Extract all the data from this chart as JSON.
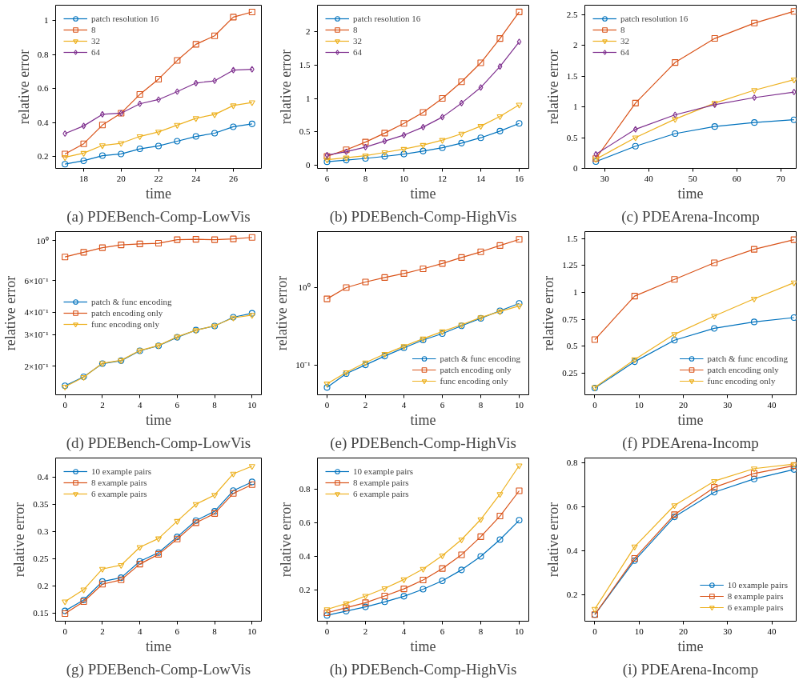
{
  "chart_data": [
    {
      "type": "line",
      "title": "(a) PDEBench-Comp-LowVis",
      "xlabel": "time",
      "ylabel": "relative error",
      "legend": "top left",
      "x": [
        17,
        18,
        19,
        20,
        21,
        22,
        23,
        24,
        25,
        26,
        27
      ],
      "xlim": [
        16.5,
        27.5
      ],
      "xticks": [
        18,
        20,
        22,
        24,
        26
      ],
      "ylim": [
        0.13,
        1.09
      ],
      "yticks": [
        0.2,
        0.4,
        0.6,
        0.8,
        1.0
      ],
      "series": [
        {
          "name": "patch resolution 16",
          "color": "#0072bd",
          "marker": "circle",
          "values": [
            0.155,
            0.175,
            0.205,
            0.215,
            0.245,
            0.262,
            0.29,
            0.318,
            0.337,
            0.375,
            0.392
          ]
        },
        {
          "name": "8",
          "color": "#d95319",
          "marker": "square",
          "values": [
            0.215,
            0.275,
            0.385,
            0.455,
            0.565,
            0.655,
            0.765,
            0.86,
            0.91,
            1.02,
            1.05
          ]
        },
        {
          "name": "32",
          "color": "#edb120",
          "marker": "triangle",
          "values": [
            0.195,
            0.22,
            0.265,
            0.278,
            0.318,
            0.345,
            0.385,
            0.425,
            0.447,
            0.5,
            0.518
          ]
        },
        {
          "name": "64",
          "color": "#7e2f8e",
          "marker": "diamond",
          "values": [
            0.335,
            0.38,
            0.448,
            0.455,
            0.51,
            0.535,
            0.582,
            0.632,
            0.645,
            0.708,
            0.713
          ]
        }
      ]
    },
    {
      "type": "line",
      "title": "(b) PDEBench-Comp-HighVis",
      "xlabel": "time",
      "ylabel": "relative error",
      "legend": "top left",
      "x": [
        6,
        7,
        8,
        9,
        10,
        11,
        12,
        13,
        14,
        15,
        16
      ],
      "xlim": [
        5.5,
        16.5
      ],
      "xticks": [
        6,
        8,
        10,
        12,
        14,
        16
      ],
      "ylim": [
        -0.05,
        2.4
      ],
      "yticks": [
        0.0,
        0.5,
        1.0,
        1.5,
        2.0
      ],
      "series": [
        {
          "name": "patch resolution 16",
          "color": "#0072bd",
          "marker": "circle",
          "values": [
            0.05,
            0.075,
            0.1,
            0.13,
            0.165,
            0.21,
            0.26,
            0.33,
            0.41,
            0.51,
            0.625
          ]
        },
        {
          "name": "8",
          "color": "#d95319",
          "marker": "square",
          "values": [
            0.13,
            0.23,
            0.345,
            0.48,
            0.625,
            0.79,
            1.0,
            1.25,
            1.535,
            1.9,
            2.3
          ]
        },
        {
          "name": "32",
          "color": "#edb120",
          "marker": "triangle",
          "values": [
            0.08,
            0.11,
            0.14,
            0.19,
            0.24,
            0.3,
            0.375,
            0.47,
            0.585,
            0.73,
            0.905
          ]
        },
        {
          "name": "64",
          "color": "#7e2f8e",
          "marker": "diamond",
          "values": [
            0.15,
            0.2,
            0.27,
            0.36,
            0.45,
            0.57,
            0.72,
            0.93,
            1.165,
            1.48,
            1.85
          ]
        }
      ]
    },
    {
      "type": "line",
      "title": "(c) PDEArena-Incomp",
      "xlabel": "time",
      "ylabel": "relative error",
      "legend": "top left",
      "x": [
        28,
        37,
        46,
        55,
        64,
        73
      ],
      "xlim": [
        25.5,
        73.5
      ],
      "xticks": [
        30,
        40,
        50,
        60,
        70
      ],
      "ylim": [
        0,
        2.65
      ],
      "yticks": [
        0.0,
        0.5,
        1.0,
        1.5,
        2.0,
        2.5
      ],
      "series": [
        {
          "name": "patch resolution 16",
          "color": "#0072bd",
          "marker": "circle",
          "values": [
            0.11,
            0.36,
            0.565,
            0.68,
            0.745,
            0.79
          ]
        },
        {
          "name": "8",
          "color": "#d95319",
          "marker": "square",
          "values": [
            0.16,
            1.06,
            1.72,
            2.11,
            2.36,
            2.55
          ]
        },
        {
          "name": "32",
          "color": "#edb120",
          "marker": "triangle",
          "values": [
            0.15,
            0.5,
            0.8,
            1.06,
            1.27,
            1.44
          ]
        },
        {
          "name": "64",
          "color": "#7e2f8e",
          "marker": "diamond",
          "values": [
            0.23,
            0.635,
            0.87,
            1.035,
            1.15,
            1.24
          ]
        }
      ]
    },
    {
      "type": "line",
      "title": "(d) PDEBench-Comp-LowVis",
      "xlabel": "time",
      "ylabel": "relative error",
      "legend": "left",
      "log": "y",
      "x": [
        0,
        1,
        2,
        3,
        4,
        5,
        6,
        7,
        8,
        9,
        10
      ],
      "xlim": [
        -0.5,
        10.5
      ],
      "xticks": [
        0,
        2,
        4,
        6,
        8,
        10
      ],
      "ylim": [
        0.139,
        1.12
      ],
      "yticks": [
        {
          "value": 0.2,
          "label": "2×10⁻¹"
        },
        {
          "value": 0.3,
          "label": "3×10⁻¹"
        },
        {
          "value": 0.4,
          "label": "4×10⁻¹"
        },
        {
          "value": 0.6,
          "label": "6×10⁻¹"
        },
        {
          "value": 1,
          "label": "10⁰"
        }
      ],
      "series": [
        {
          "name": "patch & func encoding",
          "color": "#0072bd",
          "marker": "circle",
          "values": [
            0.156,
            0.175,
            0.207,
            0.215,
            0.244,
            0.26,
            0.29,
            0.318,
            0.335,
            0.375,
            0.394
          ]
        },
        {
          "name": "patch encoding only",
          "color": "#d95319",
          "marker": "square",
          "values": [
            0.81,
            0.86,
            0.912,
            0.945,
            0.957,
            0.965,
            1.01,
            1.015,
            1.01,
            1.02,
            1.04
          ]
        },
        {
          "name": "func encoding only",
          "color": "#edb120",
          "marker": "triangle",
          "values": [
            0.154,
            0.174,
            0.208,
            0.216,
            0.245,
            0.261,
            0.292,
            0.317,
            0.336,
            0.372,
            0.385
          ]
        }
      ]
    },
    {
      "type": "line",
      "title": "(e) PDEBench-Comp-HighVis",
      "xlabel": "time",
      "ylabel": "relative error",
      "legend": "bottom right",
      "log": "y",
      "x": [
        0,
        1,
        2,
        3,
        4,
        5,
        6,
        7,
        8,
        9,
        10
      ],
      "xlim": [
        -0.5,
        10.5
      ],
      "xticks": [
        0,
        2,
        4,
        6,
        8,
        10
      ],
      "ylim": [
        0.041,
        5.3
      ],
      "yticks": [
        {
          "value": 0.1,
          "label": "10⁻¹"
        },
        {
          "value": 1,
          "label": "10⁰"
        }
      ],
      "series": [
        {
          "name": "patch & func encoding",
          "color": "#0072bd",
          "marker": "circle",
          "values": [
            0.051,
            0.077,
            0.1,
            0.13,
            0.166,
            0.21,
            0.254,
            0.32,
            0.4,
            0.5,
            0.624
          ]
        },
        {
          "name": "patch encoding only",
          "color": "#d95319",
          "marker": "square",
          "values": [
            0.714,
            1.0,
            1.18,
            1.35,
            1.52,
            1.75,
            2.05,
            2.45,
            2.9,
            3.5,
            4.2
          ]
        },
        {
          "name": "func encoding only",
          "color": "#edb120",
          "marker": "triangle",
          "values": [
            0.057,
            0.08,
            0.107,
            0.138,
            0.174,
            0.218,
            0.27,
            0.33,
            0.41,
            0.49,
            0.58
          ]
        }
      ]
    },
    {
      "type": "line",
      "title": "(f) PDEArena-Incomp",
      "xlabel": "time",
      "ylabel": "relative error",
      "legend": "bottom right",
      "x": [
        0,
        9,
        18,
        27,
        36,
        45
      ],
      "xlim": [
        -2.25,
        45.5
      ],
      "xticks": [
        0,
        10,
        20,
        30,
        40
      ],
      "ylim": [
        0.047,
        1.565
      ],
      "yticks": [
        0.25,
        0.5,
        0.75,
        1.0,
        1.25,
        1.5
      ],
      "series": [
        {
          "name": "patch & func encoding",
          "color": "#0072bd",
          "marker": "circle",
          "values": [
            0.11,
            0.355,
            0.555,
            0.665,
            0.725,
            0.765
          ]
        },
        {
          "name": "patch encoding only",
          "color": "#d95319",
          "marker": "square",
          "values": [
            0.56,
            0.965,
            1.12,
            1.275,
            1.4,
            1.49
          ]
        },
        {
          "name": "func encoding only",
          "color": "#edb120",
          "marker": "triangle",
          "values": [
            0.115,
            0.375,
            0.61,
            0.78,
            0.94,
            1.09
          ]
        }
      ]
    },
    {
      "type": "line",
      "title": "(g) PDEBench-Comp-LowVis",
      "xlabel": "time",
      "ylabel": "relative error",
      "legend": "top left",
      "x": [
        0,
        1,
        2,
        3,
        4,
        5,
        6,
        7,
        8,
        9,
        10
      ],
      "xlim": [
        -0.5,
        10.5
      ],
      "xticks": [
        0,
        2,
        4,
        6,
        8,
        10
      ],
      "ylim": [
        0.135,
        0.435
      ],
      "yticks": [
        0.15,
        0.2,
        0.25,
        0.3,
        0.35,
        0.4
      ],
      "series": [
        {
          "name": "10 example pairs",
          "color": "#0072bd",
          "marker": "circle",
          "values": [
            0.154,
            0.174,
            0.208,
            0.215,
            0.245,
            0.261,
            0.29,
            0.32,
            0.337,
            0.375,
            0.391
          ]
        },
        {
          "name": "8 example pairs",
          "color": "#d95319",
          "marker": "square",
          "values": [
            0.149,
            0.171,
            0.203,
            0.211,
            0.24,
            0.258,
            0.286,
            0.316,
            0.333,
            0.37,
            0.386
          ]
        },
        {
          "name": "6 example pairs",
          "color": "#edb120",
          "marker": "triangle",
          "values": [
            0.171,
            0.193,
            0.231,
            0.238,
            0.271,
            0.287,
            0.319,
            0.35,
            0.367,
            0.406,
            0.42
          ]
        }
      ]
    },
    {
      "type": "line",
      "title": "(h) PDEBench-Comp-HighVis",
      "xlabel": "time",
      "ylabel": "relative error",
      "legend": "top left",
      "x": [
        0,
        1,
        2,
        3,
        4,
        5,
        6,
        7,
        8,
        9,
        10
      ],
      "xlim": [
        -0.5,
        10.5
      ],
      "xticks": [
        0,
        2,
        4,
        6,
        8,
        10
      ],
      "ylim": [
        0.015,
        0.985
      ],
      "yticks": [
        0.2,
        0.4,
        0.6,
        0.8
      ],
      "series": [
        {
          "name": "10 example pairs",
          "color": "#0072bd",
          "marker": "circle",
          "values": [
            0.05,
            0.075,
            0.1,
            0.13,
            0.163,
            0.205,
            0.255,
            0.32,
            0.4,
            0.5,
            0.615
          ]
        },
        {
          "name": "8 example pairs",
          "color": "#d95319",
          "marker": "square",
          "values": [
            0.065,
            0.095,
            0.125,
            0.165,
            0.207,
            0.26,
            0.328,
            0.41,
            0.517,
            0.64,
            0.79
          ]
        },
        {
          "name": "6 example pairs",
          "color": "#edb120",
          "marker": "triangle",
          "values": [
            0.085,
            0.12,
            0.165,
            0.21,
            0.263,
            0.325,
            0.405,
            0.5,
            0.62,
            0.77,
            0.94
          ]
        }
      ]
    },
    {
      "type": "line",
      "title": "(i) PDEArena-Incomp",
      "xlabel": "time",
      "ylabel": "relative error",
      "legend": "bottom right",
      "x": [
        0,
        9,
        18,
        27,
        36,
        45
      ],
      "xlim": [
        -2.25,
        45.5
      ],
      "xticks": [
        0,
        10,
        20,
        30,
        40
      ],
      "ylim": [
        0.08,
        0.82
      ],
      "yticks": [
        0.2,
        0.4,
        0.6,
        0.8
      ],
      "series": [
        {
          "name": "10 example pairs",
          "color": "#0072bd",
          "marker": "circle",
          "values": [
            0.11,
            0.355,
            0.553,
            0.665,
            0.725,
            0.768
          ]
        },
        {
          "name": "8 example pairs",
          "color": "#d95319",
          "marker": "square",
          "values": [
            0.11,
            0.365,
            0.563,
            0.687,
            0.75,
            0.785
          ]
        },
        {
          "name": "6 example pairs",
          "color": "#edb120",
          "marker": "triangle",
          "values": [
            0.135,
            0.418,
            0.605,
            0.715,
            0.772,
            0.792
          ]
        }
      ]
    }
  ]
}
